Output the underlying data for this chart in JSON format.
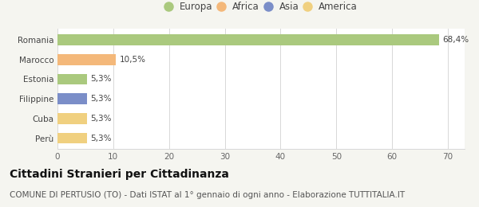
{
  "categories": [
    "Perù",
    "Cuba",
    "Filippine",
    "Estonia",
    "Marocco",
    "Romania"
  ],
  "values": [
    5.3,
    5.3,
    5.3,
    5.3,
    10.5,
    68.4
  ],
  "labels": [
    "5,3%",
    "5,3%",
    "5,3%",
    "5,3%",
    "10,5%",
    "68,4%"
  ],
  "colors": [
    "#f0d080",
    "#f0d080",
    "#7b8ec8",
    "#aac97e",
    "#f4b87a",
    "#aac97e"
  ],
  "legend_entries": [
    {
      "label": "Europa",
      "color": "#aac97e"
    },
    {
      "label": "Africa",
      "color": "#f4b87a"
    },
    {
      "label": "Asia",
      "color": "#7b8ec8"
    },
    {
      "label": "America",
      "color": "#f0d080"
    }
  ],
  "xlim": [
    0,
    73
  ],
  "xticks": [
    0,
    10,
    20,
    30,
    40,
    50,
    60,
    70
  ],
  "title": "Cittadini Stranieri per Cittadinanza",
  "subtitle": "COMUNE DI PERTUSIO (TO) - Dati ISTAT al 1° gennaio di ogni anno - Elaborazione TUTTITALIA.IT",
  "background_color": "#f5f5f0",
  "bar_background": "#ffffff",
  "grid_color": "#d8d8d8",
  "title_fontsize": 10,
  "subtitle_fontsize": 7.5,
  "label_fontsize": 7.5,
  "tick_fontsize": 7.5,
  "legend_fontsize": 8.5,
  "bar_height": 0.55
}
